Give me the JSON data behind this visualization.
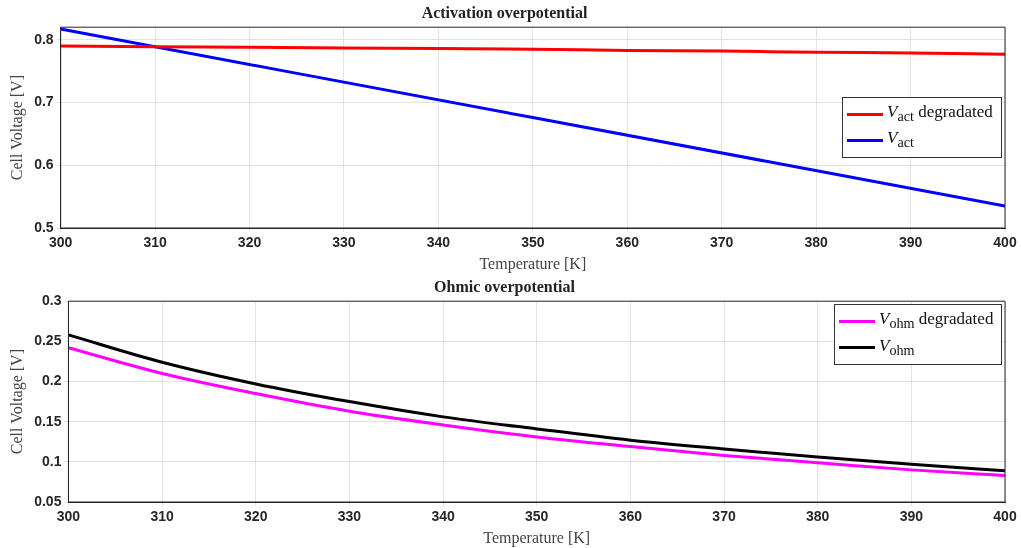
{
  "chart_data": [
    {
      "type": "line",
      "title": "Activation overpotential",
      "xlabel": "Temperature [K]",
      "ylabel": "Cell Voltage [V]",
      "x": [
        300,
        310,
        320,
        330,
        340,
        350,
        360,
        370,
        380,
        390,
        400
      ],
      "series": [
        {
          "name": "V$_{act}$ degradated",
          "color": "#ff0000",
          "values": [
            0.79,
            0.789,
            0.788,
            0.787,
            0.786,
            0.785,
            0.783,
            0.782,
            0.78,
            0.779,
            0.777
          ]
        },
        {
          "name": "V$_{act}$",
          "color": "#0000ff",
          "x": [
            300,
            350,
            400
          ],
          "values": [
            0.817,
            0.676,
            0.535
          ]
        }
      ],
      "xlim": [
        300,
        400
      ],
      "xticks": [
        300,
        310,
        320,
        330,
        340,
        350,
        360,
        370,
        380,
        390,
        400
      ],
      "ylim": [
        0.5,
        0.82
      ],
      "yticks": [
        0.5,
        0.6,
        0.7,
        0.8
      ],
      "grid": true,
      "legend": "right",
      "marker": "none",
      "line_style": "solid"
    },
    {
      "type": "line",
      "title": "Ohmic overpotential",
      "xlabel": "Temperature [K]",
      "ylabel": "Cell Voltage [V]",
      "x": [
        300,
        310,
        320,
        330,
        340,
        350,
        360,
        370,
        380,
        390,
        400
      ],
      "series": [
        {
          "name": "V$_{ohm}$ degradated",
          "color": "#ff00ff",
          "values": [
            0.242,
            0.21,
            0.185,
            0.163,
            0.146,
            0.131,
            0.119,
            0.108,
            0.099,
            0.09,
            0.083
          ]
        },
        {
          "name": "V$_{ohm}$",
          "color": "#000000",
          "values": [
            0.258,
            0.224,
            0.197,
            0.175,
            0.156,
            0.141,
            0.127,
            0.116,
            0.106,
            0.097,
            0.089
          ]
        }
      ],
      "xlim": [
        300,
        400
      ],
      "xticks": [
        300,
        310,
        320,
        330,
        340,
        350,
        360,
        370,
        380,
        390,
        400
      ],
      "ylim": [
        0.05,
        0.3
      ],
      "yticks": [
        0.05,
        0.1,
        0.15,
        0.2,
        0.25,
        0.3
      ],
      "grid": true,
      "legend": "top right",
      "marker": "none",
      "line_style": "solid"
    }
  ]
}
